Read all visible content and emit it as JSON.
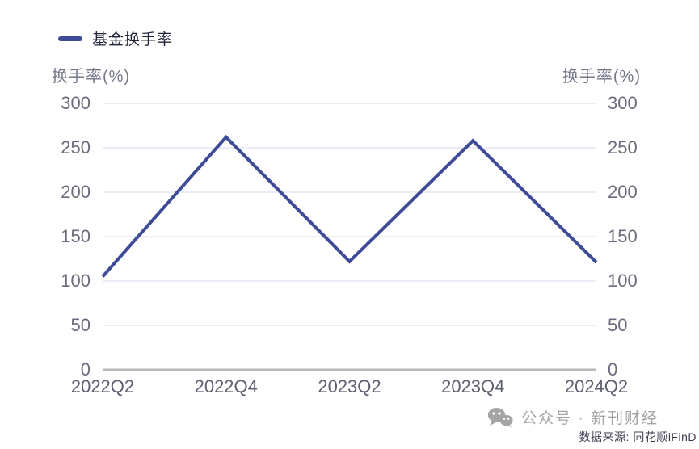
{
  "legend": {
    "label": "基金换手率"
  },
  "axes": {
    "left_title": "换手率(%)",
    "right_title": "换手率(%)"
  },
  "footer": {
    "brand": "公众号 · 新刊财经",
    "source": "数据来源: 同花顺iFinD",
    "wechat_icon": "wechat-icon"
  },
  "colors": {
    "line": "#3E4C98",
    "grid": "#ECECF5",
    "axis_line": "#B8B8BF",
    "tick_text": "#6A6C7E",
    "xlabel_text": "#5F6173",
    "axis_title_text": "#75778B",
    "legend_text": "#23263A",
    "brand_text": "#A5A5A8",
    "source_text": "#3D3D52"
  },
  "chart_data": {
    "type": "line",
    "title": "",
    "categories": [
      "2022Q2",
      "2022Q4",
      "2023Q2",
      "2023Q4",
      "2024Q2"
    ],
    "series": [
      {
        "name": "基金换手率",
        "values": [
          105,
          262,
          122,
          258,
          121
        ]
      }
    ],
    "xlabel": "",
    "ylabel": "换手率(%)",
    "ylim": [
      0,
      300
    ],
    "yticks": [
      0,
      50,
      100,
      150,
      200,
      250,
      300
    ],
    "grid": true,
    "legend_position": "top-left",
    "dual_y_axis": true
  }
}
